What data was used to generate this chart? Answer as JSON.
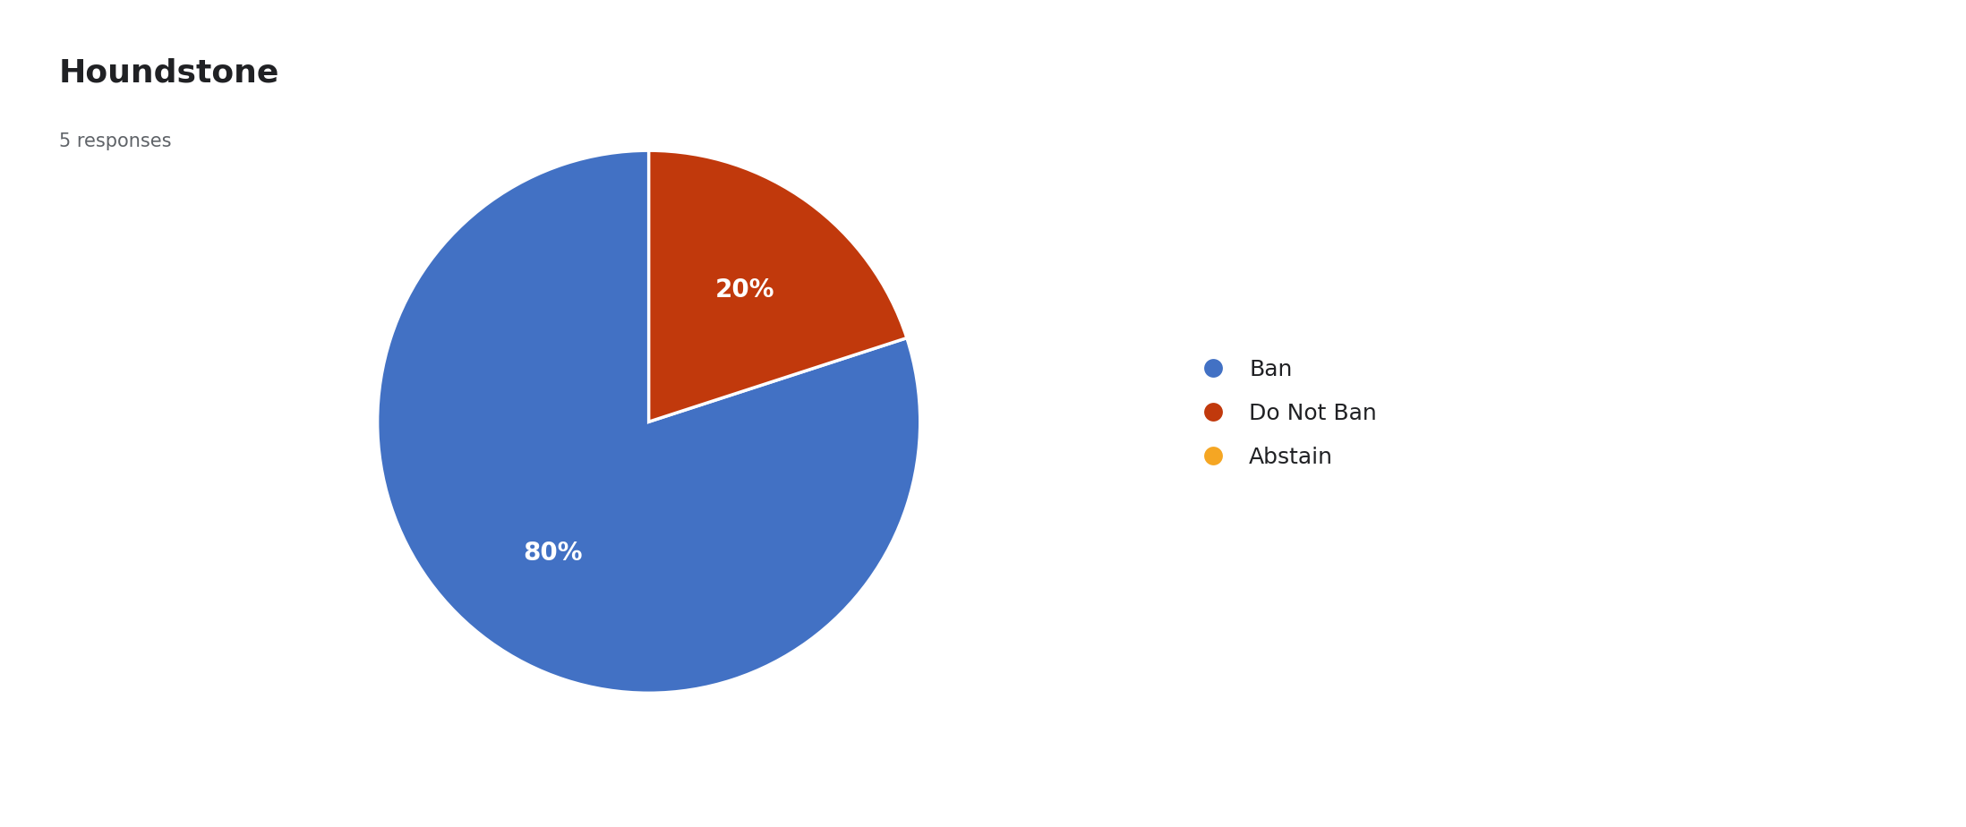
{
  "title": "Houndstone",
  "subtitle": "5 responses",
  "slices": [
    80,
    20
  ],
  "labels": [
    "Ban",
    "Do Not Ban",
    "Abstain"
  ],
  "colors": [
    "#4271C4",
    "#C1390C",
    "#F5A623"
  ],
  "background_color": "#ffffff",
  "title_fontsize": 26,
  "subtitle_fontsize": 15,
  "legend_fontsize": 18,
  "pct_fontsize": 20,
  "startangle": 90
}
